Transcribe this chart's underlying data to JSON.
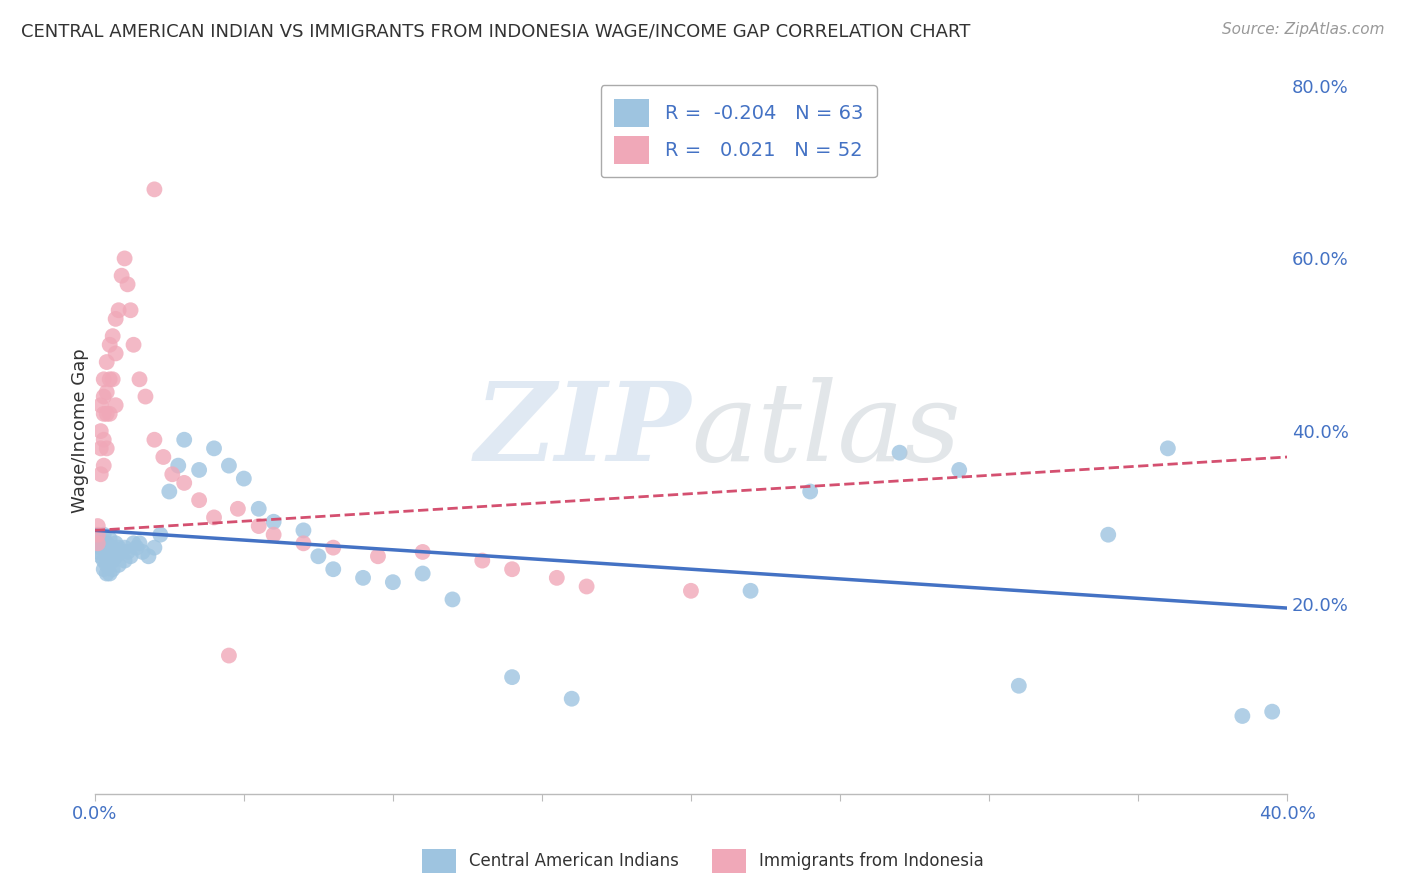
{
  "title": "CENTRAL AMERICAN INDIAN VS IMMIGRANTS FROM INDONESIA WAGE/INCOME GAP CORRELATION CHART",
  "source": "Source: ZipAtlas.com",
  "ylabel": "Wage/Income Gap",
  "xmin": 0.0,
  "xmax": 0.4,
  "ymin": -0.02,
  "ymax": 0.82,
  "yticks": [
    0.0,
    0.2,
    0.4,
    0.6,
    0.8
  ],
  "ytick_labels": [
    "",
    "20.0%",
    "40.0%",
    "60.0%",
    "80.0%"
  ],
  "xticks": [
    0.0,
    0.05,
    0.1,
    0.15,
    0.2,
    0.25,
    0.3,
    0.35,
    0.4
  ],
  "xtick_labels": [
    "0.0%",
    "",
    "",
    "",
    "",
    "",
    "",
    "",
    "40.0%"
  ],
  "blue_R": -0.204,
  "blue_N": 63,
  "pink_R": 0.021,
  "pink_N": 52,
  "blue_color": "#9EC4E0",
  "pink_color": "#F0A8B8",
  "blue_line_color": "#4472C4",
  "pink_line_color": "#D45070",
  "legend_label_blue": "Central American Indians",
  "legend_label_pink": "Immigrants from Indonesia",
  "background_color": "#FFFFFF",
  "grid_color": "#CCCCCC",
  "blue_trend_x0": 0.0,
  "blue_trend_y0": 0.285,
  "blue_trend_x1": 0.4,
  "blue_trend_y1": 0.195,
  "pink_trend_x0": 0.0,
  "pink_trend_y0": 0.285,
  "pink_trend_x1": 0.4,
  "pink_trend_y1": 0.37,
  "blue_x": [
    0.001,
    0.001,
    0.002,
    0.002,
    0.002,
    0.003,
    0.003,
    0.003,
    0.003,
    0.004,
    0.004,
    0.004,
    0.004,
    0.005,
    0.005,
    0.005,
    0.005,
    0.006,
    0.006,
    0.006,
    0.007,
    0.007,
    0.008,
    0.008,
    0.009,
    0.01,
    0.01,
    0.011,
    0.012,
    0.013,
    0.014,
    0.015,
    0.016,
    0.018,
    0.02,
    0.022,
    0.025,
    0.028,
    0.03,
    0.035,
    0.04,
    0.045,
    0.05,
    0.055,
    0.06,
    0.07,
    0.075,
    0.08,
    0.09,
    0.1,
    0.11,
    0.12,
    0.14,
    0.16,
    0.22,
    0.24,
    0.27,
    0.29,
    0.31,
    0.34,
    0.36,
    0.385,
    0.395
  ],
  "blue_y": [
    0.275,
    0.26,
    0.265,
    0.27,
    0.255,
    0.28,
    0.265,
    0.25,
    0.24,
    0.27,
    0.255,
    0.245,
    0.235,
    0.275,
    0.26,
    0.25,
    0.235,
    0.265,
    0.25,
    0.24,
    0.27,
    0.255,
    0.265,
    0.245,
    0.26,
    0.265,
    0.25,
    0.26,
    0.255,
    0.27,
    0.265,
    0.27,
    0.26,
    0.255,
    0.265,
    0.28,
    0.33,
    0.36,
    0.39,
    0.355,
    0.38,
    0.36,
    0.345,
    0.31,
    0.295,
    0.285,
    0.255,
    0.24,
    0.23,
    0.225,
    0.235,
    0.205,
    0.115,
    0.09,
    0.215,
    0.33,
    0.375,
    0.355,
    0.105,
    0.28,
    0.38,
    0.07,
    0.075
  ],
  "pink_x": [
    0.001,
    0.001,
    0.001,
    0.002,
    0.002,
    0.002,
    0.002,
    0.003,
    0.003,
    0.003,
    0.003,
    0.003,
    0.004,
    0.004,
    0.004,
    0.004,
    0.005,
    0.005,
    0.005,
    0.006,
    0.006,
    0.007,
    0.007,
    0.007,
    0.008,
    0.009,
    0.01,
    0.011,
    0.012,
    0.013,
    0.015,
    0.017,
    0.02,
    0.023,
    0.026,
    0.03,
    0.035,
    0.04,
    0.048,
    0.055,
    0.06,
    0.07,
    0.08,
    0.095,
    0.11,
    0.13,
    0.14,
    0.155,
    0.165,
    0.2,
    0.02,
    0.045
  ],
  "pink_y": [
    0.29,
    0.28,
    0.27,
    0.43,
    0.4,
    0.38,
    0.35,
    0.46,
    0.44,
    0.42,
    0.39,
    0.36,
    0.48,
    0.445,
    0.42,
    0.38,
    0.5,
    0.46,
    0.42,
    0.51,
    0.46,
    0.53,
    0.49,
    0.43,
    0.54,
    0.58,
    0.6,
    0.57,
    0.54,
    0.5,
    0.46,
    0.44,
    0.39,
    0.37,
    0.35,
    0.34,
    0.32,
    0.3,
    0.31,
    0.29,
    0.28,
    0.27,
    0.265,
    0.255,
    0.26,
    0.25,
    0.24,
    0.23,
    0.22,
    0.215,
    0.68,
    0.14
  ]
}
